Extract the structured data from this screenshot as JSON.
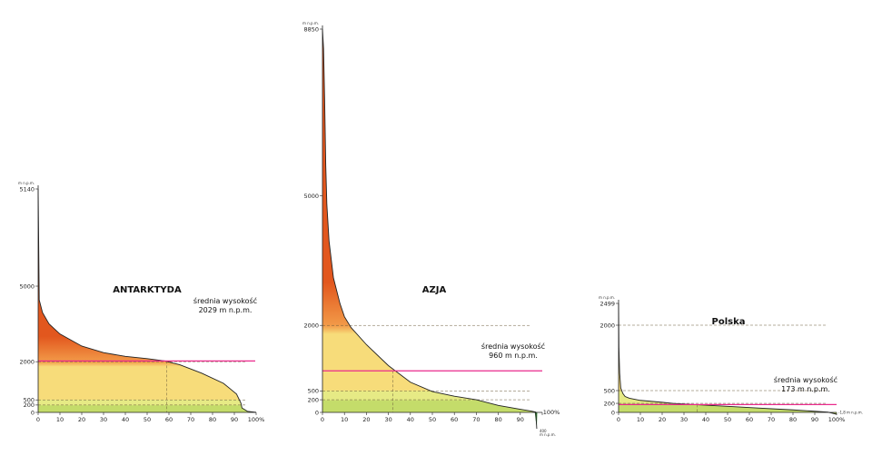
{
  "chart_data": [
    {
      "type": "area",
      "title": "ANTARKTYDA",
      "x_unit": "%",
      "y_unit": "m n.p.m.",
      "xlim": [
        0,
        100
      ],
      "ylim": [
        0,
        5140
      ],
      "y_ticks": [
        0,
        200,
        500,
        2000,
        5000,
        5140
      ],
      "x_ticks": [
        0,
        10,
        20,
        30,
        40,
        50,
        60,
        70,
        80,
        90,
        100
      ],
      "grid": "dashed guides",
      "curve": [
        [
          0,
          5140
        ],
        [
          0.5,
          4450
        ],
        [
          2,
          3950
        ],
        [
          5,
          3500
        ],
        [
          10,
          3100
        ],
        [
          20,
          2620
        ],
        [
          30,
          2360
        ],
        [
          40,
          2210
        ],
        [
          50,
          2120
        ],
        [
          58,
          2029
        ],
        [
          65,
          1880
        ],
        [
          75,
          1550
        ],
        [
          85,
          1150
        ],
        [
          91,
          730
        ],
        [
          93,
          320
        ],
        [
          93.5,
          120
        ],
        [
          96,
          30
        ],
        [
          100,
          0
        ]
      ],
      "average": {
        "value": 2029,
        "x": 59,
        "label_line1": "średnia wysokość",
        "label_line2": "2029 m n.p.m."
      }
    },
    {
      "type": "area",
      "title": "AZJA",
      "x_unit": "%",
      "y_unit": "m n.p.m.",
      "xlim": [
        0,
        100
      ],
      "ylim": [
        -400,
        8850
      ],
      "y_ticks": [
        0,
        200,
        500,
        2000,
        5000,
        8850
      ],
      "x_ticks": [
        0,
        10,
        20,
        30,
        40,
        50,
        60,
        70,
        80,
        90,
        100
      ],
      "grid": "dashed guides",
      "curve": [
        [
          0,
          8850
        ],
        [
          0.5,
          8400
        ],
        [
          1,
          7200
        ],
        [
          1.5,
          5700
        ],
        [
          2,
          4800
        ],
        [
          3,
          3950
        ],
        [
          5,
          3100
        ],
        [
          8,
          2500
        ],
        [
          10,
          2200
        ],
        [
          13,
          1950
        ],
        [
          20,
          1560
        ],
        [
          30,
          1080
        ],
        [
          40,
          700
        ],
        [
          50,
          480
        ],
        [
          60,
          320
        ],
        [
          70,
          200
        ],
        [
          80,
          110
        ],
        [
          90,
          50
        ],
        [
          95,
          20
        ],
        [
          97,
          5
        ],
        [
          97.5,
          -400
        ]
      ],
      "average": {
        "value": 960,
        "x": 32,
        "label_line1": "średnia wysokość",
        "label_line2": "960 m n.p.m."
      },
      "min_label": "400",
      "min_unit": "m n.p.m."
    },
    {
      "type": "area",
      "title": "Polska",
      "x_unit": "%",
      "y_unit": "m n.p.m.",
      "xlim": [
        0,
        100
      ],
      "ylim": [
        -1.8,
        2499
      ],
      "y_ticks": [
        0,
        200,
        500,
        2000,
        2499
      ],
      "x_ticks": [
        0,
        10,
        20,
        30,
        40,
        50,
        60,
        70,
        80,
        90,
        100
      ],
      "grid": "dashed guides",
      "curve": [
        [
          0,
          2499
        ],
        [
          0.15,
          1500
        ],
        [
          0.5,
          900
        ],
        [
          1,
          560
        ],
        [
          2,
          430
        ],
        [
          3,
          360
        ],
        [
          5,
          320
        ],
        [
          10,
          270
        ],
        [
          20,
          225
        ],
        [
          25,
          200
        ],
        [
          35,
          172
        ],
        [
          50,
          135
        ],
        [
          65,
          95
        ],
        [
          80,
          55
        ],
        [
          90,
          25
        ],
        [
          96,
          6
        ],
        [
          100,
          -1.8
        ]
      ],
      "average": {
        "value": 173,
        "x": 36,
        "label_line1": "średnia wysokość",
        "label_line2": "173 m n.p.m."
      },
      "min_label": "-1,8",
      "min_unit": "m n.p.m."
    }
  ],
  "labels": {
    "y_unit_short": "m n.p.m.",
    "x_end": "100%"
  },
  "colors": {
    "high": "#e2571e",
    "mid": "#f29a48",
    "low": "#f7dc7a",
    "plain": "#e6ea85",
    "lowland": "#c4dc6a",
    "depression": "#2e7d32",
    "avg_line": "#ea2a8c",
    "outline": "#222222"
  }
}
